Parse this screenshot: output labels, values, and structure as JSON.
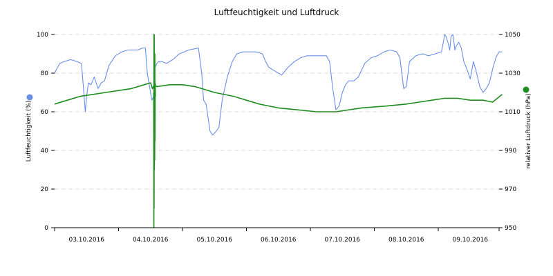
{
  "chart_data": {
    "type": "line",
    "title": "Luftfeuchtigkeit und Luftdruck",
    "ylabel_left": "Luftfeuchtigkeit (%)",
    "ylabel_right": "relativer Luftdruck (hPa)",
    "y_left_range": [
      0,
      100
    ],
    "y_left_ticks": [
      "0",
      "20",
      "40",
      "60",
      "80",
      "100"
    ],
    "y_right_range": [
      950,
      1050
    ],
    "y_right_ticks": [
      "950",
      "970",
      "990",
      "1010",
      "1030",
      "1050"
    ],
    "x_range": [
      0,
      7.03
    ],
    "x_tick_labels": [
      "03.10.2016",
      "04.10.2016",
      "05.10.2016",
      "06.10.2016",
      "07.10.2016",
      "08.10.2016",
      "09.10.2016"
    ],
    "grid": true,
    "series": [
      {
        "color": "#6a8ee8",
        "axis": "left",
        "x": [
          0,
          0.03,
          0.08,
          0.15,
          0.25,
          0.35,
          0.42,
          0.45,
          0.48,
          0.5,
          0.53,
          0.57,
          0.62,
          0.68,
          0.73,
          0.78,
          0.85,
          0.95,
          1.05,
          1.15,
          1.3,
          1.38,
          1.42,
          1.45,
          1.5,
          1.52,
          1.55,
          1.57,
          1.6,
          1.63,
          1.68,
          1.75,
          1.85,
          1.95,
          2.1,
          2.25,
          2.3,
          2.33,
          2.37,
          2.4,
          2.43,
          2.47,
          2.5,
          2.53,
          2.57,
          2.62,
          2.7,
          2.78,
          2.85,
          2.95,
          3.05,
          3.15,
          3.25,
          3.3,
          3.35,
          3.45,
          3.55,
          3.65,
          3.75,
          3.85,
          3.95,
          4.05,
          4.15,
          4.25,
          4.3,
          4.35,
          4.4,
          4.45,
          4.5,
          4.55,
          4.6,
          4.68,
          4.75,
          4.85,
          4.95,
          5.05,
          5.15,
          5.25,
          5.35,
          5.4,
          5.43,
          5.46,
          5.5,
          5.55,
          5.65,
          5.75,
          5.85,
          5.95,
          6.05,
          6.08,
          6.1,
          6.12,
          6.15,
          6.18,
          6.2,
          6.23,
          6.26,
          6.28,
          6.32,
          6.36,
          6.4,
          6.45,
          6.5,
          6.55,
          6.6,
          6.65,
          6.7,
          6.75,
          6.8,
          6.85,
          6.9,
          6.95,
          7.0
        ],
        "values": [
          80,
          82,
          85,
          86,
          87,
          86,
          85,
          73,
          60,
          68,
          75,
          74,
          78,
          72,
          75,
          76,
          84,
          89,
          91,
          92,
          92,
          93,
          93,
          80,
          70,
          66,
          68,
          83,
          85,
          86,
          86,
          85,
          87,
          90,
          92,
          93,
          80,
          66,
          64,
          57,
          50,
          48,
          49,
          50,
          52,
          66,
          78,
          86,
          90,
          91,
          91,
          91,
          90,
          86,
          83,
          81,
          79,
          83,
          86,
          88,
          89,
          89,
          89,
          89,
          86,
          72,
          61,
          63,
          70,
          74,
          76,
          76,
          78,
          85,
          88,
          89,
          91,
          92,
          91,
          88,
          80,
          72,
          73,
          86,
          89,
          90,
          89,
          90,
          91,
          96,
          100,
          99,
          96,
          92,
          99,
          100,
          92,
          94,
          96,
          93,
          86,
          82,
          77,
          86,
          80,
          73,
          70,
          72,
          75,
          82,
          88,
          91,
          91
        ]
      },
      {
        "color": "#1e8c1e",
        "axis": "right",
        "x": [
          0,
          0.2,
          0.4,
          0.6,
          0.8,
          1.0,
          1.2,
          1.4,
          1.5,
          1.53,
          1.56,
          1.6,
          1.8,
          2.0,
          2.2,
          2.5,
          2.8,
          3.2,
          3.5,
          3.8,
          4.1,
          4.4,
          4.8,
          5.2,
          5.5,
          5.7,
          5.9,
          6.1,
          6.3,
          6.5,
          6.7,
          6.85,
          7.0
        ],
        "values": [
          1014,
          1016,
          1018,
          1019,
          1020,
          1021,
          1022,
          1024,
          1025,
          1022,
          1024,
          1023,
          1024,
          1024,
          1023,
          1020,
          1018,
          1014,
          1012,
          1011,
          1010,
          1010,
          1012,
          1013,
          1014,
          1015,
          1016,
          1017,
          1017,
          1016,
          1016,
          1015,
          1019
        ]
      },
      {
        "color": "#1e8c1e",
        "axis": "right",
        "x": [
          1.55,
          1.552,
          1.554,
          1.556,
          1.558,
          1.56,
          1.562,
          1.565,
          1.568,
          1.57,
          1.573,
          1.576
        ],
        "values": [
          1020,
          950,
          1050,
          960,
          1050,
          980,
          1030,
          985,
          1040,
          995,
          1025,
          1018
        ]
      }
    ]
  }
}
